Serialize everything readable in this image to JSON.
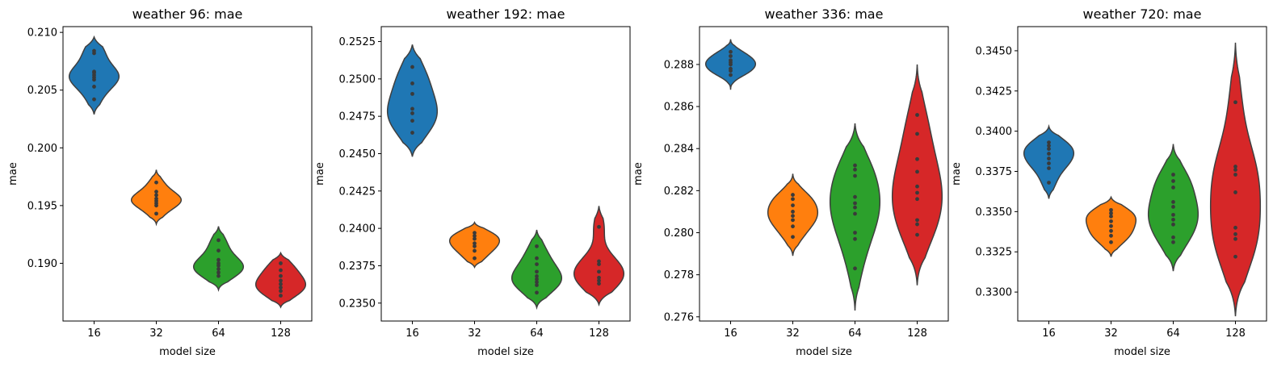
{
  "chart_data": [
    {
      "type": "violin",
      "title": "weather 96: mae",
      "xlabel": "model size",
      "ylabel": "mae",
      "categories": [
        "16",
        "32",
        "64",
        "128"
      ],
      "colors": [
        "#1f77b4",
        "#ff7f0e",
        "#2ca02c",
        "#d62728"
      ],
      "ylim": [
        0.185,
        0.2105
      ],
      "yticks": [
        0.19,
        0.195,
        0.2,
        0.205,
        0.21
      ],
      "yticklabels": [
        "0.190",
        "0.195",
        "0.200",
        "0.205",
        "0.210"
      ],
      "series": [
        {
          "name": "16",
          "range": [
            0.2029,
            0.2096
          ],
          "points": [
            0.2042,
            0.2053,
            0.2059,
            0.2061,
            0.2063,
            0.2065,
            0.2066,
            0.2082,
            0.2084
          ]
        },
        {
          "name": "32",
          "range": [
            0.1934,
            0.1981
          ],
          "points": [
            0.1943,
            0.195,
            0.1952,
            0.1954,
            0.1956,
            0.1959,
            0.1962,
            0.197
          ]
        },
        {
          "name": "64",
          "range": [
            0.1877,
            0.1932
          ],
          "points": [
            0.1889,
            0.1892,
            0.1895,
            0.1898,
            0.19,
            0.1903,
            0.1911,
            0.192
          ]
        },
        {
          "name": "128",
          "range": [
            0.1862,
            0.1909
          ],
          "points": [
            0.1872,
            0.1876,
            0.1879,
            0.1882,
            0.1885,
            0.1889,
            0.1894,
            0.19
          ]
        }
      ]
    },
    {
      "type": "violin",
      "title": "weather 192: mae",
      "xlabel": "model size",
      "ylabel": "mae",
      "categories": [
        "16",
        "32",
        "64",
        "128"
      ],
      "colors": [
        "#1f77b4",
        "#ff7f0e",
        "#2ca02c",
        "#d62728"
      ],
      "ylim": [
        0.2338,
        0.2535
      ],
      "yticks": [
        0.235,
        0.2375,
        0.24,
        0.2425,
        0.245,
        0.2475,
        0.25,
        0.2525
      ],
      "yticklabels": [
        "0.2350",
        "0.2375",
        "0.2400",
        "0.2425",
        "0.2450",
        "0.2475",
        "0.2500",
        "0.2525"
      ],
      "series": [
        {
          "name": "16",
          "range": [
            0.2448,
            0.2523
          ],
          "points": [
            0.2464,
            0.2472,
            0.2477,
            0.248,
            0.249,
            0.2497,
            0.2508
          ]
        },
        {
          "name": "32",
          "range": [
            0.2374,
            0.2404
          ],
          "points": [
            0.238,
            0.2385,
            0.2388,
            0.239,
            0.2393,
            0.2395,
            0.2397
          ]
        },
        {
          "name": "64",
          "range": [
            0.2347,
            0.2399
          ],
          "points": [
            0.2357,
            0.2362,
            0.2364,
            0.2366,
            0.2368,
            0.2371,
            0.2376,
            0.238,
            0.2388
          ]
        },
        {
          "name": "128",
          "range": [
            0.2349,
            0.2415
          ],
          "points": [
            0.2363,
            0.2365,
            0.2367,
            0.2371,
            0.2376,
            0.2378,
            0.2401
          ]
        }
      ]
    },
    {
      "type": "violin",
      "title": "weather 336: mae",
      "xlabel": "model size",
      "ylabel": "mae",
      "categories": [
        "16",
        "32",
        "64",
        "128"
      ],
      "colors": [
        "#1f77b4",
        "#ff7f0e",
        "#2ca02c",
        "#d62728"
      ],
      "ylim": [
        0.2758,
        0.2898
      ],
      "yticks": [
        0.276,
        0.278,
        0.28,
        0.282,
        0.284,
        0.286,
        0.288
      ],
      "yticklabels": [
        "0.276",
        "0.278",
        "0.280",
        "0.282",
        "0.284",
        "0.286",
        "0.288"
      ],
      "series": [
        {
          "name": "16",
          "range": [
            0.2868,
            0.2892
          ],
          "points": [
            0.2875,
            0.2877,
            0.2878,
            0.288,
            0.2881,
            0.2882,
            0.2884,
            0.2886
          ]
        },
        {
          "name": "32",
          "range": [
            0.2789,
            0.2828
          ],
          "points": [
            0.2798,
            0.2803,
            0.2806,
            0.2808,
            0.281,
            0.2813,
            0.2816,
            0.2818
          ]
        },
        {
          "name": "64",
          "range": [
            0.2763,
            0.2852
          ],
          "points": [
            0.2783,
            0.2797,
            0.28,
            0.2809,
            0.2812,
            0.2814,
            0.2817,
            0.2827,
            0.283,
            0.2832
          ]
        },
        {
          "name": "128",
          "range": [
            0.2775,
            0.288
          ],
          "points": [
            0.2799,
            0.2804,
            0.2806,
            0.2816,
            0.2819,
            0.2822,
            0.2829,
            0.2835,
            0.2847,
            0.2856
          ]
        }
      ]
    },
    {
      "type": "violin",
      "title": "weather 720: mae",
      "xlabel": "model size",
      "ylabel": "mae",
      "categories": [
        "16",
        "32",
        "64",
        "128"
      ],
      "colors": [
        "#1f77b4",
        "#ff7f0e",
        "#2ca02c",
        "#d62728"
      ],
      "ylim": [
        0.3282,
        0.3465
      ],
      "yticks": [
        0.33,
        0.3325,
        0.335,
        0.3375,
        0.34,
        0.3425,
        0.345
      ],
      "yticklabels": [
        "0.3300",
        "0.3325",
        "0.3350",
        "0.3375",
        "0.3400",
        "0.3425",
        "0.3450"
      ],
      "series": [
        {
          "name": "16",
          "range": [
            0.3358,
            0.3403
          ],
          "points": [
            0.3368,
            0.3377,
            0.338,
            0.3383,
            0.3386,
            0.3389,
            0.3391,
            0.3393
          ]
        },
        {
          "name": "32",
          "range": [
            0.3322,
            0.3359
          ],
          "points": [
            0.3331,
            0.3335,
            0.3338,
            0.3341,
            0.3344,
            0.3347,
            0.3349,
            0.3351
          ]
        },
        {
          "name": "64",
          "range": [
            0.3313,
            0.3392
          ],
          "points": [
            0.3331,
            0.3334,
            0.3342,
            0.3345,
            0.3348,
            0.3353,
            0.3356,
            0.3365,
            0.3369,
            0.3373
          ]
        },
        {
          "name": "128",
          "range": [
            0.3285,
            0.3455
          ],
          "points": [
            0.3322,
            0.3333,
            0.3336,
            0.334,
            0.3362,
            0.3373,
            0.3376,
            0.3378,
            0.3418
          ]
        }
      ]
    }
  ]
}
